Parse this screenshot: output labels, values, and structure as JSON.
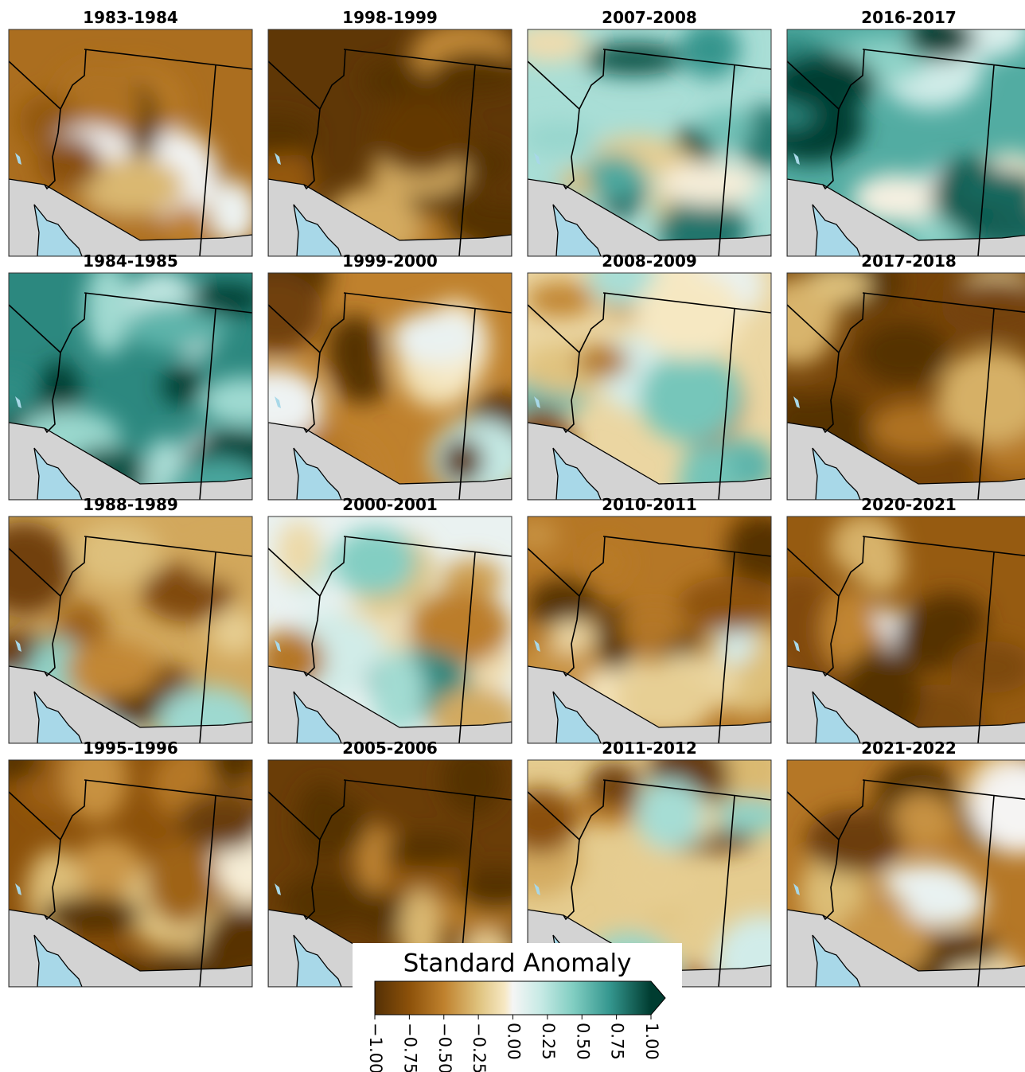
{
  "panels": [
    {
      "title": "1983-1984"
    },
    {
      "title": "1984-1985"
    },
    {
      "title": "1988-1989"
    },
    {
      "title": "1995-1996"
    },
    {
      "title": "1998-1999"
    },
    {
      "title": "1999-2000"
    },
    {
      "title": "2000-2001"
    },
    {
      "title": "2005-2006"
    },
    {
      "title": "2007-2008"
    },
    {
      "title": "2008-2009"
    },
    {
      "title": "2010-2011"
    },
    {
      "title": "2011-2012"
    },
    {
      "title": "2016-2017"
    },
    {
      "title": "2017-2018"
    },
    {
      "title": "2020-2021"
    },
    {
      "title": "2021-2022"
    }
  ],
  "colorbar": {
    "label": "Standard Anomaly",
    "lim": [
      -1,
      1
    ],
    "ticks": [
      {
        "value": -1,
        "label": "−1.00"
      },
      {
        "value": -0.75,
        "label": "−0.75"
      },
      {
        "value": -0.5,
        "label": "−0.50"
      },
      {
        "value": -0.25,
        "label": "−0.25"
      },
      {
        "value": 0,
        "label": "0.00"
      },
      {
        "value": 0.25,
        "label": "0.25"
      },
      {
        "value": 0.5,
        "label": "0.50"
      },
      {
        "value": 0.75,
        "label": "0.75"
      },
      {
        "value": 1,
        "label": "1.00"
      }
    ]
  }
}
